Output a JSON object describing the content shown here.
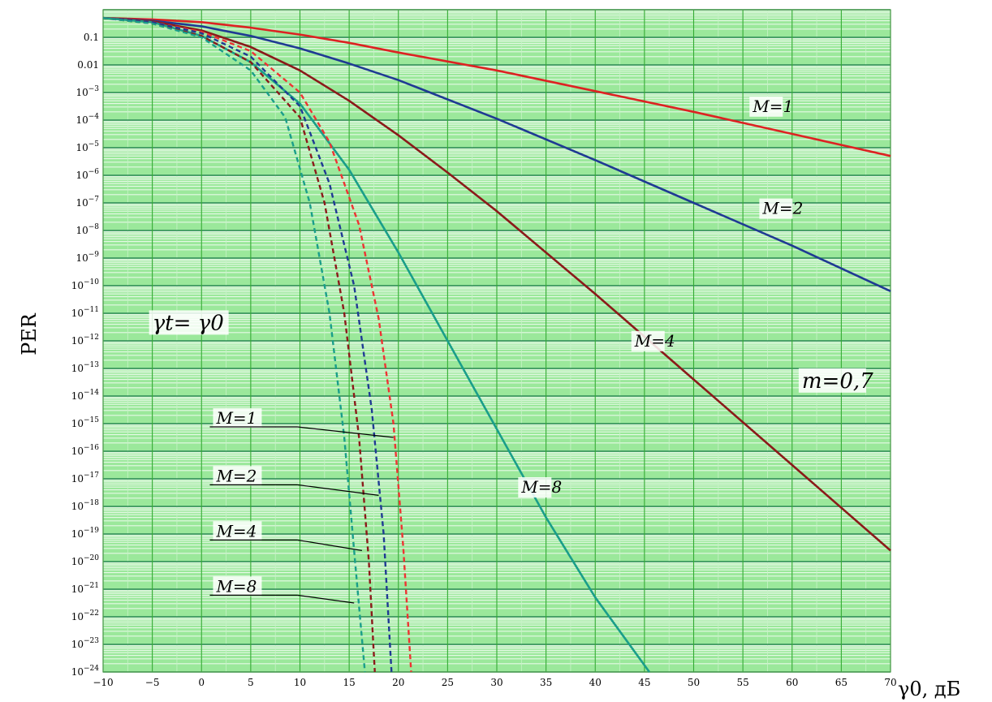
{
  "chart_data": {
    "type": "line",
    "title": "",
    "xlabel": "γ0, дБ",
    "ylabel": "PER",
    "xlim": [
      -10,
      70
    ],
    "ylim_log10": [
      -24,
      0
    ],
    "y_scale": "log",
    "grid": true,
    "x_ticks": [
      "−10",
      "−5",
      "0",
      "5",
      "10",
      "15",
      "20",
      "25",
      "30",
      "35",
      "40",
      "45",
      "50",
      "55",
      "60",
      "65",
      "70"
    ],
    "y_ticks": [
      {
        "exp": -1,
        "label": "0.1"
      },
      {
        "exp": -2,
        "label": "0.01"
      },
      {
        "exp": -3,
        "label": "10−3"
      },
      {
        "exp": -4,
        "label": "10−4"
      },
      {
        "exp": -5,
        "label": "10−5"
      },
      {
        "exp": -6,
        "label": "10−6"
      },
      {
        "exp": -7,
        "label": "10−7"
      },
      {
        "exp": -8,
        "label": "10−8"
      },
      {
        "exp": -9,
        "label": "10−9"
      },
      {
        "exp": -10,
        "label": "10−10"
      },
      {
        "exp": -11,
        "label": "10−11"
      },
      {
        "exp": -12,
        "label": "10−12"
      },
      {
        "exp": -13,
        "label": "10−13"
      },
      {
        "exp": -14,
        "label": "10−14"
      },
      {
        "exp": -15,
        "label": "10−15"
      },
      {
        "exp": -16,
        "label": "10−16"
      },
      {
        "exp": -17,
        "label": "10−17"
      },
      {
        "exp": -18,
        "label": "10−18"
      },
      {
        "exp": -19,
        "label": "10−19"
      },
      {
        "exp": -20,
        "label": "10−20"
      },
      {
        "exp": -21,
        "label": "10−21"
      },
      {
        "exp": -22,
        "label": "10−22"
      },
      {
        "exp": -23,
        "label": "10−23"
      },
      {
        "exp": -24,
        "label": "10−24"
      }
    ],
    "series": [
      {
        "name": "M=1",
        "style": "solid",
        "color": "#dd2222",
        "x": [
          -10,
          -5,
          0,
          5,
          10,
          15,
          20,
          30,
          40,
          50,
          60,
          70
        ],
        "log10_y": [
          -0.3,
          -0.35,
          -0.45,
          -0.65,
          -0.9,
          -1.2,
          -1.55,
          -2.2,
          -2.95,
          -3.7,
          -4.5,
          -5.3
        ]
      },
      {
        "name": "M=2",
        "style": "solid",
        "color": "#1f3a93",
        "x": [
          -10,
          -5,
          0,
          5,
          10,
          15,
          20,
          30,
          40,
          50,
          60,
          70
        ],
        "log10_y": [
          -0.3,
          -0.4,
          -0.6,
          -0.95,
          -1.4,
          -1.95,
          -2.55,
          -3.95,
          -5.45,
          -7.0,
          -8.55,
          -10.2
        ]
      },
      {
        "name": "M=4",
        "style": "solid",
        "color": "#8b1a1a",
        "x": [
          -10,
          -5,
          0,
          5,
          10,
          15,
          20,
          25,
          30,
          40,
          50,
          60,
          70
        ],
        "log10_y": [
          -0.3,
          -0.42,
          -0.75,
          -1.35,
          -2.2,
          -3.3,
          -4.55,
          -5.9,
          -7.3,
          -10.3,
          -13.4,
          -16.5,
          -19.6
        ]
      },
      {
        "name": "M=8",
        "style": "solid",
        "color": "#1a9e8a",
        "x": [
          -10,
          -5,
          0,
          5,
          10,
          15,
          20,
          25,
          30,
          35,
          40,
          45.5
        ],
        "log10_y": [
          -0.3,
          -0.45,
          -0.95,
          -1.9,
          -3.4,
          -5.8,
          -8.8,
          -12.0,
          -15.2,
          -18.4,
          -21.3,
          -24
        ]
      },
      {
        "name": "M=1",
        "style": "dashed",
        "color": "#ee3333",
        "x": [
          -10,
          -5,
          0,
          5,
          10,
          13,
          16,
          18,
          19.5,
          20.5,
          21.3
        ],
        "log10_y": [
          -0.3,
          -0.45,
          -0.8,
          -1.5,
          -3.0,
          -4.8,
          -7.8,
          -11.2,
          -15.0,
          -19.5,
          -24
        ]
      },
      {
        "name": "M=2",
        "style": "dashed",
        "color": "#1f3a93",
        "x": [
          -10,
          -5,
          0,
          5,
          10,
          13,
          15.5,
          17.3,
          18.5,
          19.3
        ],
        "log10_y": [
          -0.3,
          -0.45,
          -0.85,
          -1.7,
          -3.5,
          -6.3,
          -10.0,
          -14.5,
          -19.0,
          -24
        ]
      },
      {
        "name": "M=4",
        "style": "dashed",
        "color": "#8b1a1a",
        "x": [
          -10,
          -5,
          0,
          5,
          10,
          12.5,
          14.5,
          16.0,
          17.0,
          17.6
        ],
        "log10_y": [
          -0.3,
          -0.5,
          -0.95,
          -1.9,
          -3.9,
          -7.0,
          -11.0,
          -15.5,
          -20.0,
          -24
        ]
      },
      {
        "name": "M=8",
        "style": "dashed",
        "color": "#1a9e8a",
        "x": [
          -10,
          -5,
          0,
          5,
          8.5,
          11,
          13,
          14.5,
          15.6,
          16.6
        ],
        "log10_y": [
          -0.3,
          -0.5,
          -1.0,
          -2.2,
          -3.9,
          -7.0,
          -11.0,
          -15.5,
          -20.0,
          -24
        ]
      }
    ],
    "annotations": [
      {
        "text": "M=1",
        "x": 56,
        "exp": -3.7
      },
      {
        "text": "M=2",
        "x": 57,
        "exp": -7.4
      },
      {
        "text": "M=4",
        "x": 44,
        "exp": -12.2
      },
      {
        "text": "M=8",
        "x": 32.5,
        "exp": -17.5
      },
      {
        "text": "m=0,7",
        "x": 61,
        "exp": -13.7
      },
      {
        "text": "γt= γ0",
        "x": -5,
        "exp": -11.6
      }
    ],
    "callouts": [
      {
        "text": "M=1",
        "label_x": 1.5,
        "label_exp": -15.0,
        "target_x": 19.5,
        "target_exp": -15.5
      },
      {
        "text": "M=2",
        "label_x": 1.5,
        "label_exp": -17.1,
        "target_x": 18.0,
        "target_exp": -17.6
      },
      {
        "text": "M=4",
        "label_x": 1.5,
        "label_exp": -19.1,
        "target_x": 16.3,
        "target_exp": -19.6
      },
      {
        "text": "M=8",
        "label_x": 1.5,
        "label_exp": -21.1,
        "target_x": 15.5,
        "target_exp": -21.5
      }
    ]
  }
}
